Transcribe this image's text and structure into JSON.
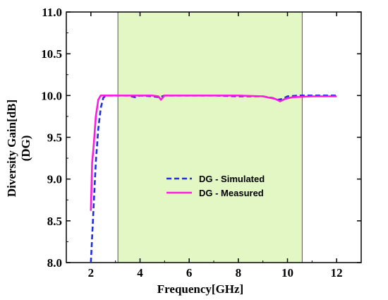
{
  "chart_data": {
    "type": "line",
    "title": "",
    "xlabel": "Frequency[GHz]",
    "ylabel_lines": [
      "Diversity Gain[dB]",
      "(DG)"
    ],
    "xlim": [
      1,
      13
    ],
    "ylim": [
      8.0,
      11.0
    ],
    "xticks": [
      2,
      4,
      6,
      8,
      10,
      12
    ],
    "yticks": [
      8.0,
      8.5,
      9.0,
      9.5,
      10.0,
      10.5,
      11.0
    ],
    "xtick_labels": [
      "2",
      "4",
      "6",
      "8",
      "10",
      "12"
    ],
    "ytick_labels": [
      "8.0",
      "8.5",
      "9.0",
      "9.5",
      "10.0",
      "10.5",
      "11.0"
    ],
    "grid": false,
    "legend_position": "center-left",
    "shaded_band": {
      "x_start": 3.1,
      "x_end": 10.6,
      "color": "#e2f7c4"
    },
    "series": [
      {
        "name": "DG - Simulated",
        "color": "#1f2fe0",
        "style": "dashed",
        "x": [
          2.0,
          2.1,
          2.2,
          2.3,
          2.4,
          2.5,
          2.6,
          2.8,
          3.0,
          3.5,
          3.8,
          4.0,
          4.5,
          4.8,
          5.0,
          6.0,
          7.0,
          8.0,
          9.0,
          9.4,
          9.6,
          9.8,
          10.0,
          10.5,
          11.0,
          11.5,
          12.0
        ],
        "y": [
          8.0,
          8.6,
          9.2,
          9.6,
          9.85,
          9.97,
          10.0,
          10.0,
          10.0,
          10.0,
          9.98,
          10.0,
          9.99,
          9.98,
          10.0,
          10.0,
          10.0,
          9.99,
          9.99,
          9.97,
          9.95,
          9.96,
          9.99,
          10.0,
          10.0,
          10.0,
          10.0
        ]
      },
      {
        "name": "DG - Measured",
        "color": "#ff1adf",
        "style": "solid",
        "x": [
          2.0,
          2.05,
          2.1,
          2.15,
          2.2,
          2.3,
          2.4,
          2.5,
          3.0,
          3.5,
          4.0,
          4.5,
          4.75,
          4.85,
          5.0,
          6.0,
          7.0,
          8.0,
          9.0,
          9.5,
          9.7,
          9.9,
          10.2,
          11.0,
          12.0
        ],
        "y": [
          8.62,
          9.2,
          9.35,
          9.55,
          9.75,
          9.95,
          10.0,
          10.0,
          10.0,
          10.0,
          10.0,
          10.0,
          9.99,
          9.95,
          10.0,
          10.0,
          10.0,
          10.0,
          9.99,
          9.96,
          9.93,
          9.96,
          9.98,
          9.99,
          9.99
        ]
      }
    ]
  }
}
